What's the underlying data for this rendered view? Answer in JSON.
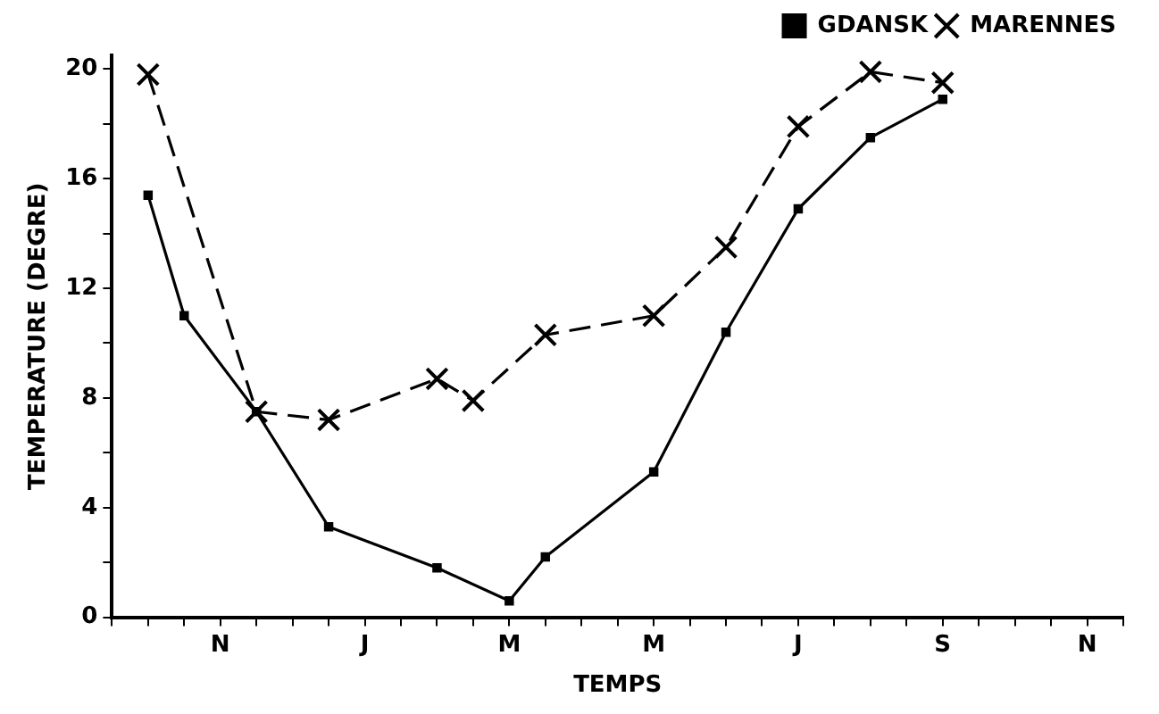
{
  "chart_data": {
    "type": "line",
    "xlabel": "TEMPS",
    "ylabel": "TEMPERATURE (DEGRE)",
    "categories": [
      null,
      null,
      null,
      "N",
      null,
      null,
      null,
      "J",
      null,
      null,
      null,
      "M",
      null,
      null,
      null,
      "M",
      null,
      null,
      null,
      "J",
      null,
      null,
      null,
      "S",
      null,
      null,
      null,
      "N",
      null
    ],
    "ylim": [
      0,
      20.5
    ],
    "yticks": [
      0,
      {
        "value": 2,
        "label": null
      },
      4,
      {
        "value": 6,
        "label": null
      },
      8,
      {
        "value": 10,
        "label": null
      },
      12,
      {
        "value": 14,
        "label": null
      },
      16,
      {
        "value": 18,
        "label": null
      },
      20
    ],
    "grid": false,
    "legend": "top right",
    "series": [
      {
        "name": "GDANSK",
        "color": "#000000",
        "marker": "square",
        "line_style": "solid",
        "values": [
          null,
          15.4,
          11.0,
          null,
          7.5,
          null,
          3.3,
          null,
          null,
          1.8,
          null,
          0.6,
          2.2,
          null,
          null,
          5.3,
          null,
          10.4,
          null,
          14.9,
          null,
          17.5,
          null,
          18.9,
          null,
          null,
          null,
          null,
          null
        ]
      },
      {
        "name": "MARENNES",
        "color": "#000000",
        "marker": "cross",
        "line_style": "dashed",
        "values": [
          null,
          19.8,
          null,
          null,
          7.5,
          null,
          7.2,
          null,
          null,
          8.7,
          7.9,
          null,
          10.3,
          null,
          null,
          11.0,
          null,
          13.5,
          null,
          17.9,
          null,
          19.9,
          null,
          19.5,
          null,
          null,
          null,
          null,
          null
        ]
      }
    ]
  }
}
